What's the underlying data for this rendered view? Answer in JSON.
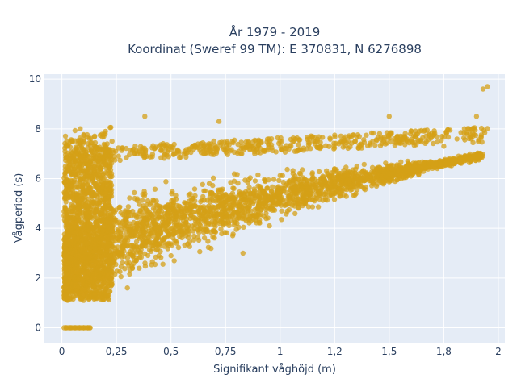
{
  "chart_data": {
    "type": "scatter",
    "title_line1": "År 1979 - 2019",
    "title_line2": "Koordinat (Sweref 99 TM): E 370831, N 6276898",
    "xlabel": "Signifikant våghöjd (m)",
    "ylabel": "Vågperiod (s)",
    "xlim": [
      -0.08,
      2.03
    ],
    "ylim": [
      -0.6,
      10.2
    ],
    "x_ticks": [
      {
        "value": 0,
        "label": "0"
      },
      {
        "value": 0.25,
        "label": "0,25"
      },
      {
        "value": 0.5,
        "label": "0,5"
      },
      {
        "value": 0.75,
        "label": "0,75"
      },
      {
        "value": 1.0,
        "label": "1"
      },
      {
        "value": 1.25,
        "label": "1,2"
      },
      {
        "value": 1.5,
        "label": "1,5"
      },
      {
        "value": 1.75,
        "label": "1,8"
      },
      {
        "value": 2.0,
        "label": "2"
      }
    ],
    "y_ticks": [
      {
        "value": 0,
        "label": "0"
      },
      {
        "value": 2,
        "label": "2"
      },
      {
        "value": 4,
        "label": "4"
      },
      {
        "value": 6,
        "label": "6"
      },
      {
        "value": 8,
        "label": "8"
      },
      {
        "value": 10,
        "label": "10"
      }
    ],
    "grid": true,
    "marker_color": "#d4a017",
    "plot_bgcolor": "#e5ecf6",
    "series": [
      {
        "values_description_points": [
          [
            0.02,
            0.0
          ],
          [
            0.04,
            0.0
          ],
          [
            0.06,
            0.0
          ],
          [
            0.08,
            0.0
          ],
          [
            0.1,
            0.0
          ],
          [
            0.12,
            0.0
          ],
          [
            0.13,
            0.0
          ],
          [
            0.01,
            4.5
          ],
          [
            0.02,
            1.2
          ],
          [
            0.03,
            1.5
          ],
          [
            0.04,
            2.8
          ],
          [
            0.05,
            3.5
          ],
          [
            0.05,
            5.5
          ],
          [
            0.1,
            7.5
          ],
          [
            0.1,
            1.1
          ],
          [
            0.15,
            1.3
          ],
          [
            0.2,
            7.9
          ],
          [
            0.38,
            8.5
          ],
          [
            0.72,
            8.3
          ],
          [
            0.83,
            3.0
          ],
          [
            1.15,
            6.0
          ],
          [
            1.5,
            8.5
          ],
          [
            1.6,
            6.1
          ],
          [
            1.93,
            9.6
          ],
          [
            1.95,
            9.7
          ],
          [
            0.3,
            1.6
          ],
          [
            0.5,
            2.9
          ],
          [
            0.75,
            4.2
          ],
          [
            1.0,
            5.2
          ],
          [
            1.25,
            5.8
          ],
          [
            1.5,
            6.5
          ],
          [
            1.75,
            7.3
          ],
          [
            1.9,
            8.5
          ]
        ]
      }
    ]
  }
}
